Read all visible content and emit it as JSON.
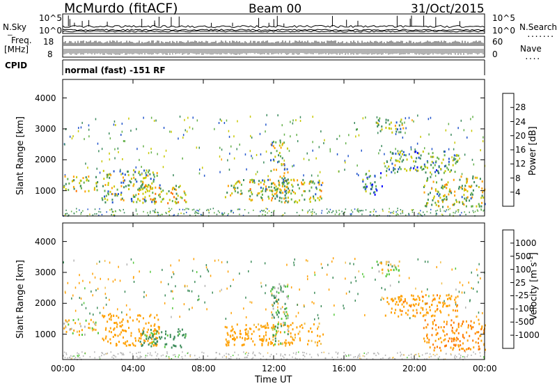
{
  "header": {
    "station": "McMurdo (fitACF)",
    "beam": "Beam 00",
    "date": "31/Oct/2015"
  },
  "top_panels": {
    "nsky_label": "N.Sky",
    "nsearch_label": "N.Search",
    "noise_ticks_left": [
      "10^5",
      "10^0"
    ],
    "noise_ticks_right": [
      "10^5",
      "10^0"
    ],
    "freq_label": "Freq.",
    "freq_unit": "[MHz]",
    "freq_ticks": [
      "18",
      "8"
    ],
    "nave_label": "Nave",
    "nave_ticks": [
      "60",
      "0"
    ],
    "cpid_label": "CPID",
    "cpid_text": "normal (fast) -151 RF",
    "dotted_marker": "......."
  },
  "colors": {
    "power_scale": [
      "#0000ff",
      "#2255cc",
      "#3b8a5c",
      "#64b04a",
      "#c8c800",
      "#ffa000",
      "#ff7000",
      "#ff3000",
      "#ff0000"
    ],
    "velocity_scale": [
      "#1a3aa8",
      "#2a6f8a",
      "#3d8c5a",
      "#55c83c",
      "#b4b4b4",
      "#f0c050",
      "#ffa000",
      "#ff7a00",
      "#ff0000"
    ]
  },
  "chart_data": [
    {
      "type": "heatmap",
      "title": "Power",
      "xlabel": "Time UT",
      "ylabel": "Slant Range [km]",
      "x_ticks": [
        "00:00",
        "04:00",
        "08:00",
        "12:00",
        "16:00",
        "20:00",
        "00:00"
      ],
      "x_range_hours": [
        0,
        24
      ],
      "y_ticks": [
        1000,
        2000,
        3000,
        4000
      ],
      "y_range_km": [
        180,
        4600
      ],
      "colorbar_label": "Power [dB]",
      "colorbar_ticks": [
        4,
        8,
        12,
        16,
        20,
        24,
        28
      ],
      "colorbar_range": [
        0,
        30
      ],
      "scatter_regions": [
        {
          "t0": 0.0,
          "t1": 2.0,
          "r0": 1000,
          "r1": 1500,
          "level": 14
        },
        {
          "t0": 2.2,
          "t1": 5.5,
          "r0": 650,
          "r1": 1700,
          "level": 11
        },
        {
          "t0": 4.3,
          "t1": 7.0,
          "r0": 600,
          "r1": 1200,
          "level": 15
        },
        {
          "t0": 9.2,
          "t1": 14.8,
          "r0": 650,
          "r1": 1400,
          "level": 13
        },
        {
          "t0": 11.8,
          "t1": 12.8,
          "r0": 700,
          "r1": 2700,
          "level": 12
        },
        {
          "t0": 17.0,
          "t1": 18.2,
          "r0": 900,
          "r1": 1600,
          "level": 6
        },
        {
          "t0": 17.8,
          "t1": 19.4,
          "r0": 2900,
          "r1": 3400,
          "level": 10
        },
        {
          "t0": 18.2,
          "t1": 22.5,
          "r0": 1600,
          "r1": 2300,
          "level": 9
        },
        {
          "t0": 20.5,
          "t1": 24.0,
          "r0": 500,
          "r1": 1500,
          "level": 13
        }
      ]
    },
    {
      "type": "heatmap",
      "title": "Velocity",
      "xlabel": "Time UT",
      "ylabel": "Slant Range [km]",
      "x_ticks": [
        "00:00",
        "04:00",
        "08:00",
        "12:00",
        "16:00",
        "20:00",
        "00:00"
      ],
      "x_range_hours": [
        0,
        24
      ],
      "y_ticks": [
        1000,
        2000,
        3000,
        4000
      ],
      "y_range_km": [
        180,
        4600
      ],
      "colorbar_label": "Velocity [m s^-1]",
      "colorbar_ticks": [
        1000,
        500,
        100,
        25,
        -25,
        -100,
        -500,
        -1000
      ],
      "scatter_regions": [
        {
          "t0": 0.0,
          "t1": 2.0,
          "r0": 1000,
          "r1": 1500,
          "vel": -60
        },
        {
          "t0": 2.2,
          "t1": 5.5,
          "r0": 650,
          "r1": 1700,
          "vel": -300
        },
        {
          "t0": 4.3,
          "t1": 7.0,
          "r0": 600,
          "r1": 1200,
          "vel": 200
        },
        {
          "t0": 9.2,
          "t1": 14.8,
          "r0": 650,
          "r1": 1400,
          "vel": -200
        },
        {
          "t0": 11.8,
          "t1": 12.8,
          "r0": 700,
          "r1": 2700,
          "vel": 80
        },
        {
          "t0": 17.8,
          "t1": 19.4,
          "r0": 2900,
          "r1": 3400,
          "vel": 0
        },
        {
          "t0": 18.2,
          "t1": 22.5,
          "r0": 1600,
          "r1": 2300,
          "vel": -400
        },
        {
          "t0": 20.5,
          "t1": 24.0,
          "r0": 500,
          "r1": 1500,
          "vel": -500
        }
      ]
    }
  ]
}
